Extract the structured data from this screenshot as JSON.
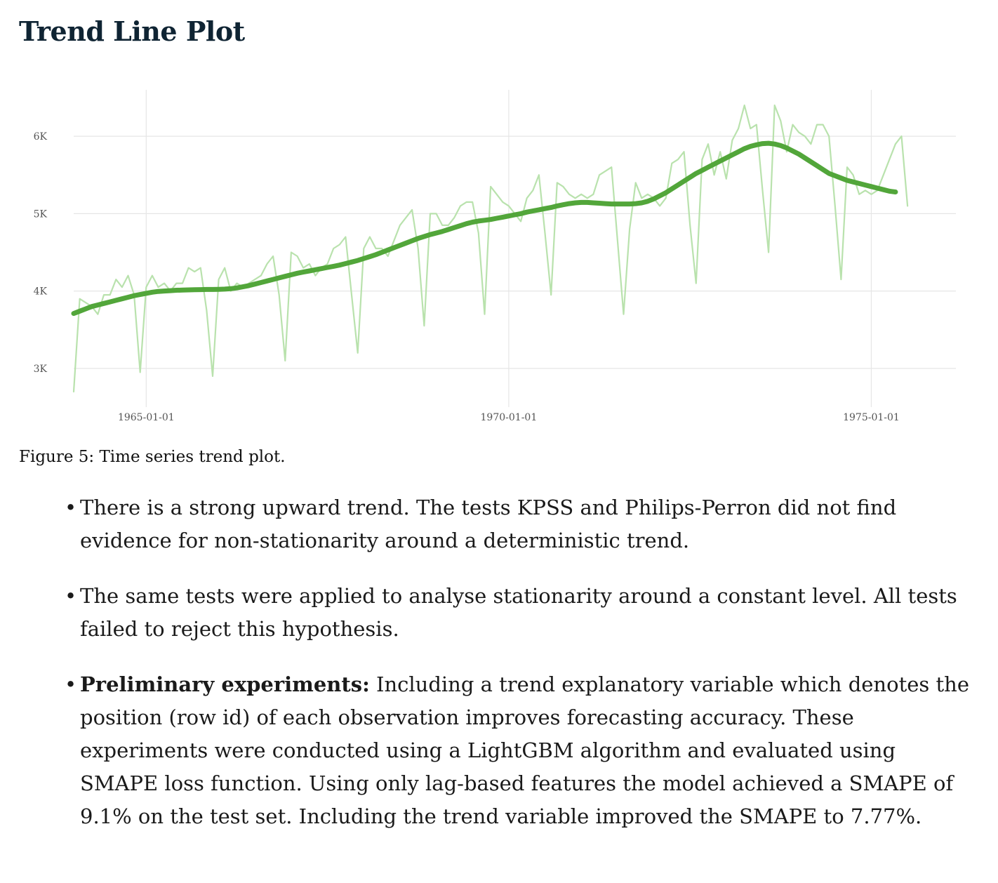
{
  "page": {
    "title": "Trend Line Plot",
    "caption": "Figure 5: Time series trend plot."
  },
  "notes": [
    {
      "bold": "",
      "text": "There is a strong upward trend. The tests KPSS and Philips-Perron did not find evidence for non-stationarity around a deterministic trend."
    },
    {
      "bold": "",
      "text": "The same tests were applied to analyse stationarity around a constant level. All tests failed to reject this hypothesis."
    },
    {
      "bold": "Preliminary experiments:",
      "text": " Including a trend explanatory variable which denotes the position (row id) of each observation improves forecasting accuracy. These experiments were conducted using a LightGBM algorithm and evaluated using SMAPE loss function. Using only lag-based features the model achieved a SMAPE of 9.1% on the test set. Including the trend variable improved the SMAPE to 7.77%."
    }
  ],
  "colors": {
    "raw_series": "#b9e2ad",
    "trend_series": "#52a63a",
    "grid": "#e6e6e6"
  },
  "chart_data": {
    "type": "line",
    "title": "",
    "xlabel": "",
    "ylabel": "",
    "x_axis_type": "date",
    "xlim": [
      "1964-01-01",
      "1976-03-01"
    ],
    "ylim": [
      2500,
      6600
    ],
    "x_ticks": [
      "1965-01-01",
      "1970-01-01",
      "1975-01-01"
    ],
    "y_ticks": [
      {
        "value": 3000,
        "label": "3K"
      },
      {
        "value": 4000,
        "label": "4K"
      },
      {
        "value": 5000,
        "label": "5K"
      },
      {
        "value": 6000,
        "label": "6K"
      }
    ],
    "grid": true,
    "legend": "none",
    "series": [
      {
        "name": "",
        "role": "raw",
        "start": "1964-01-01",
        "frequency": "monthly",
        "values": [
          2700,
          3900,
          3850,
          3800,
          3700,
          3950,
          3950,
          4150,
          4050,
          4200,
          3950,
          2950,
          4050,
          4200,
          4050,
          4100,
          4000,
          4100,
          4100,
          4300,
          4250,
          4300,
          3750,
          2900,
          4150,
          4300,
          4000,
          4100,
          4050,
          4100,
          4150,
          4200,
          4350,
          4450,
          3950,
          3100,
          4500,
          4450,
          4300,
          4350,
          4200,
          4300,
          4350,
          4550,
          4600,
          4700,
          3950,
          3200,
          4550,
          4700,
          4550,
          4550,
          4450,
          4650,
          4850,
          4950,
          5050,
          4550,
          3550,
          5000,
          5000,
          4850,
          4850,
          4950,
          5100,
          5150,
          5150,
          4750,
          3700,
          5350,
          5250,
          5150,
          5100,
          5000,
          4900,
          5200,
          5300,
          5500,
          4750,
          3950,
          5400,
          5350,
          5250,
          5200,
          5250,
          5200,
          5250,
          5500,
          5550,
          5600,
          4650,
          3700,
          4800,
          5400,
          5200,
          5250,
          5200,
          5100,
          5200,
          5650,
          5700,
          5800,
          4850,
          4100,
          5700,
          5900,
          5500,
          5800,
          5450,
          5950,
          6100,
          6400,
          6100,
          6150,
          5300,
          4500,
          6400,
          6200,
          5800,
          6150,
          6050,
          6000,
          5900,
          6150,
          6150,
          6000,
          5100,
          4150,
          5600,
          5500,
          5250,
          5300,
          5250,
          5300,
          5500,
          5700,
          5900,
          6000,
          5100
        ]
      },
      {
        "name": "",
        "role": "trend",
        "start": "1964-01-01",
        "frequency": "monthly",
        "values": [
          3710,
          3740,
          3770,
          3800,
          3820,
          3840,
          3860,
          3880,
          3900,
          3920,
          3940,
          3955,
          3970,
          3985,
          3995,
          4000,
          4005,
          4010,
          4012,
          4015,
          4017,
          4018,
          4020,
          4020,
          4022,
          4025,
          4030,
          4040,
          4055,
          4070,
          4090,
          4110,
          4130,
          4150,
          4170,
          4190,
          4210,
          4230,
          4245,
          4260,
          4275,
          4290,
          4305,
          4320,
          4335,
          4355,
          4375,
          4395,
          4420,
          4445,
          4470,
          4500,
          4530,
          4560,
          4590,
          4620,
          4650,
          4680,
          4705,
          4730,
          4750,
          4770,
          4795,
          4820,
          4845,
          4870,
          4890,
          4905,
          4915,
          4925,
          4940,
          4955,
          4970,
          4985,
          5000,
          5020,
          5035,
          5050,
          5065,
          5080,
          5100,
          5115,
          5130,
          5140,
          5145,
          5145,
          5140,
          5135,
          5130,
          5125,
          5125,
          5125,
          5125,
          5130,
          5140,
          5160,
          5190,
          5230,
          5270,
          5320,
          5370,
          5420,
          5470,
          5520,
          5560,
          5600,
          5640,
          5680,
          5720,
          5760,
          5800,
          5840,
          5870,
          5890,
          5905,
          5910,
          5900,
          5880,
          5850,
          5810,
          5770,
          5720,
          5670,
          5620,
          5570,
          5520,
          5490,
          5460,
          5430,
          5410,
          5390,
          5370,
          5350,
          5330,
          5310,
          5290,
          5280
        ]
      }
    ]
  }
}
